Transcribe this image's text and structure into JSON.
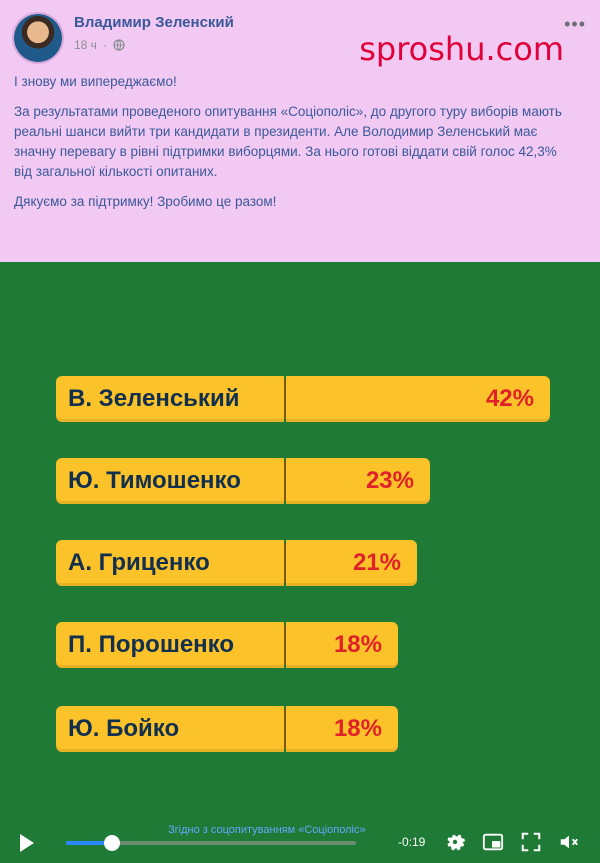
{
  "post": {
    "author": "Владимир Зеленский",
    "time": "18 ч",
    "paragraphs": [
      "І знову ми випереджаємо!",
      "За результатами проведеного опитування «Соціополіс», до другого туру виборів мають реальні шанси вийти три кандидати в президенти. Але Володимир Зеленський має значну перевагу в рівні підтримки виборцями. За нього готові віддати свій голос 42,3% від загальної кількості опитаних.",
      "Дякуємо за підтримку! Зробимо це разом!"
    ],
    "watermark": "sproshu.com"
  },
  "chart_data": {
    "type": "bar",
    "categories": [
      "В. Зеленський",
      "Ю. Тимошенко",
      "А. Гриценко",
      "П. Порошенко",
      "Ю. Бойко"
    ],
    "values": [
      42,
      23,
      21,
      18,
      18
    ],
    "value_labels": [
      "42%",
      "23%",
      "21%",
      "18%",
      "18%"
    ],
    "title": "",
    "xlabel": "",
    "ylabel": ""
  },
  "video": {
    "caption": "Згідно з соцопитуванням «Соціополіс»",
    "time": "-0:19",
    "progress": 0.16
  },
  "colors": {
    "background": "#f1c9f3",
    "video_bg": "#1e7a34",
    "bar": "#fbc22a",
    "value_text": "#e0212a",
    "name_text": "#12304d",
    "author": "#3b5998",
    "watermark": "#e0003a"
  },
  "icons": {
    "globe": "globe-icon",
    "more": "more-options-icon",
    "play": "play-icon",
    "settings": "gear-icon",
    "pip": "picture-in-picture-icon",
    "fullscreen": "fullscreen-icon",
    "mute": "mute-icon"
  }
}
